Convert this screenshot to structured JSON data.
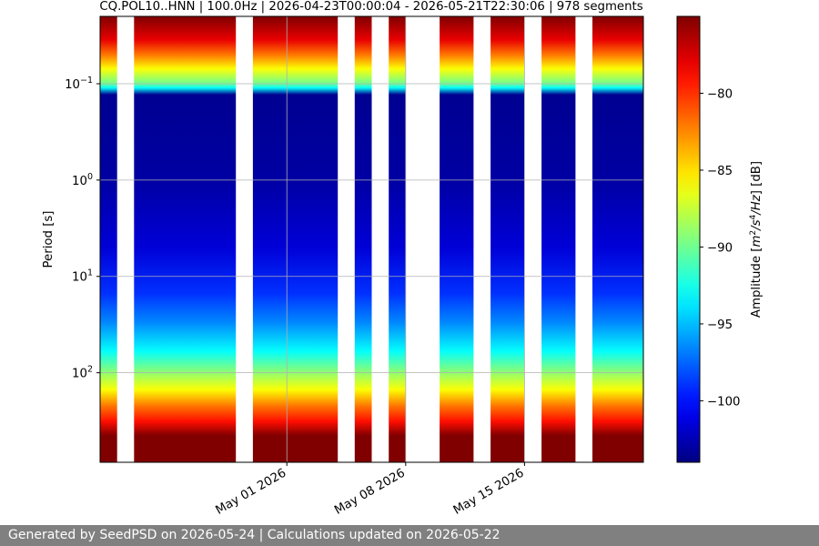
{
  "chart_data": {
    "type": "heatmap",
    "title": "CQ.POL10..HNN | 100.0Hz | 2026-04-23T00:00:04 - 2026-05-21T22:30:06 | 978 segments",
    "xlabel": "",
    "ylabel": "Period [s]",
    "x_axis": {
      "type": "date",
      "range": [
        "2026-04-20",
        "2026-05-22"
      ],
      "ticks": [
        {
          "date": "2026-05-01",
          "label": "May 01 2026"
        },
        {
          "date": "2026-05-08",
          "label": "May 08 2026"
        },
        {
          "date": "2026-05-15",
          "label": "May 15 2026"
        }
      ]
    },
    "y_axis": {
      "scale": "log",
      "inverted": true,
      "range": [
        0.02,
        850
      ],
      "ticks": [
        {
          "value": 0.1,
          "base": "10",
          "exp": "−1"
        },
        {
          "value": 1,
          "base": "10",
          "exp": "0"
        },
        {
          "value": 10,
          "base": "10",
          "exp": "1"
        },
        {
          "value": 100,
          "base": "10",
          "exp": "2"
        }
      ]
    },
    "colorbar": {
      "label_prefix": "Amplitude [",
      "label_math": "m",
      "label_exp1": "2",
      "label_mid": "/s",
      "label_exp2": "4",
      "label_end": "/Hz",
      "label_suffix": "] [dB]",
      "range": [
        -104,
        -75
      ],
      "colormap": "jet",
      "ticks": [
        {
          "value": -80,
          "label": "−80"
        },
        {
          "value": -85,
          "label": "−85"
        },
        {
          "value": -90,
          "label": "−90"
        },
        {
          "value": -95,
          "label": "−95"
        },
        {
          "value": -100,
          "label": "−100"
        }
      ]
    },
    "grid": true,
    "data_segments": [
      {
        "start": "2026-04-20",
        "end": "2026-04-21"
      },
      {
        "start": "2026-04-22",
        "end": "2026-04-28"
      },
      {
        "start": "2026-04-29",
        "end": "2026-05-04"
      },
      {
        "start": "2026-05-05",
        "end": "2026-05-06"
      },
      {
        "start": "2026-05-07",
        "end": "2026-05-08"
      },
      {
        "start": "2026-05-10",
        "end": "2026-05-12"
      },
      {
        "start": "2026-05-13",
        "end": "2026-05-15"
      },
      {
        "start": "2026-05-16",
        "end": "2026-05-18"
      },
      {
        "start": "2026-05-19",
        "end": "2026-05-22"
      }
    ],
    "amplitude_profile": [
      {
        "period": 0.02,
        "db": -75
      },
      {
        "period": 0.035,
        "db": -78
      },
      {
        "period": 0.05,
        "db": -82
      },
      {
        "period": 0.07,
        "db": -86
      },
      {
        "period": 0.1,
        "db": -90
      },
      {
        "period": 0.11,
        "db": -93
      },
      {
        "period": 0.13,
        "db": -103.5
      },
      {
        "period": 1,
        "db": -103
      },
      {
        "period": 5,
        "db": -101.5
      },
      {
        "period": 15,
        "db": -99
      },
      {
        "period": 30,
        "db": -96.5
      },
      {
        "period": 60,
        "db": -93
      },
      {
        "period": 100,
        "db": -89
      },
      {
        "period": 150,
        "db": -86
      },
      {
        "period": 220,
        "db": -82
      },
      {
        "period": 320,
        "db": -79
      },
      {
        "period": 450,
        "db": -75
      },
      {
        "period": 850,
        "db": -75
      }
    ]
  },
  "footer": {
    "text": "Generated by SeedPSD on 2026-05-24 | Calculations updated on 2026-05-22"
  }
}
